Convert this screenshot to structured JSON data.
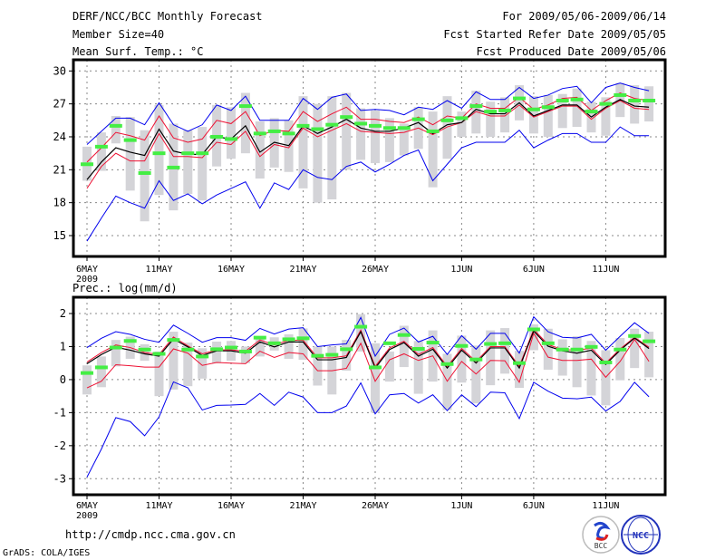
{
  "header": {
    "title": "DERF/NCC/BCC Monthly Forecast",
    "member_size": "Member Size=40",
    "variable1": "Mean Surf. Temp.: °C",
    "period": "For 2009/05/06-2009/06/14",
    "refer_date": "Fcst Started Refer Date 2009/05/05",
    "produced_date": "Fcst Produced Date 2009/05/06"
  },
  "footer": {
    "url": "http://cmdp.ncc.cma.gov.cn",
    "credit": "GrADS: COLA/IGES",
    "logo_bcc": "BCC",
    "logo_ncc": "NCC"
  },
  "colors": {
    "mean": "#000000",
    "spread": "#ee1133",
    "extreme": "#0000ee",
    "obs": "#44ee44",
    "bar": "#d4d4d8",
    "grid": "#888888"
  },
  "chart_data": [
    {
      "type": "line",
      "title": "Mean Surf. Temp.: °C",
      "xlabel": "",
      "ylabel": "",
      "ylim": [
        14,
        31
      ],
      "yticks": [
        "15",
        "18",
        "21",
        "24",
        "27",
        "30"
      ],
      "xticks": [
        {
          "day": 0,
          "label": "6MAY"
        },
        {
          "day": 5,
          "label": "11MAY"
        },
        {
          "day": 10,
          "label": "16MAY"
        },
        {
          "day": 15,
          "label": "21MAY"
        },
        {
          "day": 20,
          "label": "26MAY"
        },
        {
          "day": 26,
          "label": "1JUN"
        },
        {
          "day": 31,
          "label": "6JUN"
        },
        {
          "day": 36,
          "label": "11JUN"
        }
      ],
      "year_label": "2009",
      "grid": true,
      "series": {
        "mean": [
          20.1,
          21.7,
          23.0,
          22.6,
          22.3,
          24.7,
          22.7,
          22.4,
          22.4,
          24.0,
          23.8,
          25.0,
          22.6,
          23.5,
          23.2,
          25.0,
          24.3,
          24.9,
          25.6,
          24.8,
          24.5,
          24.5,
          24.8,
          25.3,
          24.3,
          25.1,
          25.3,
          26.5,
          26.1,
          26.1,
          27.1,
          25.9,
          26.4,
          26.9,
          26.9,
          25.8,
          26.7,
          27.4,
          26.8,
          26.7
        ],
        "spread_hi": [
          21.7,
          23.0,
          24.4,
          24.1,
          23.7,
          25.9,
          23.9,
          23.5,
          23.8,
          25.5,
          25.2,
          26.3,
          24.1,
          24.6,
          24.5,
          26.3,
          25.4,
          26.1,
          26.7,
          25.6,
          25.6,
          25.4,
          25.3,
          25.8,
          25.1,
          25.9,
          25.7,
          27.0,
          26.6,
          26.6,
          27.6,
          26.5,
          26.9,
          27.5,
          27.6,
          26.4,
          27.3,
          28.0,
          27.5,
          27.3
        ],
        "spread_lo": [
          19.3,
          21.3,
          22.5,
          21.8,
          21.8,
          24.3,
          22.2,
          22.2,
          22.1,
          23.5,
          23.3,
          24.5,
          22.2,
          23.3,
          23.0,
          24.8,
          24.0,
          24.6,
          25.2,
          24.5,
          24.4,
          24.3,
          24.4,
          24.8,
          24.2,
          24.9,
          25.3,
          26.3,
          25.9,
          25.9,
          26.9,
          25.8,
          26.3,
          26.8,
          26.8,
          25.6,
          26.6,
          27.3,
          26.6,
          26.5
        ],
        "max": [
          23.3,
          24.5,
          25.7,
          25.7,
          25.1,
          27.1,
          25.1,
          24.5,
          25.1,
          26.9,
          26.4,
          27.7,
          25.5,
          25.5,
          25.5,
          27.5,
          26.5,
          27.6,
          27.9,
          26.4,
          26.5,
          26.4,
          26.0,
          26.7,
          26.5,
          27.3,
          26.6,
          28.1,
          27.4,
          27.4,
          28.5,
          27.5,
          27.8,
          28.4,
          28.6,
          27.1,
          28.5,
          28.9,
          28.5,
          28.2
        ],
        "min": [
          14.5,
          16.6,
          18.6,
          18.0,
          17.5,
          20.0,
          18.2,
          18.8,
          17.9,
          18.7,
          19.3,
          19.9,
          17.5,
          19.8,
          19.2,
          21.0,
          20.3,
          20.1,
          21.3,
          21.7,
          20.8,
          21.5,
          22.3,
          22.8,
          20.0,
          21.5,
          23.0,
          23.5,
          23.5,
          23.5,
          24.6,
          23.0,
          23.7,
          24.3,
          24.3,
          23.5,
          23.5,
          24.9,
          24.1,
          24.1
        ],
        "observed": [
          21.5,
          23.1,
          25.0,
          23.7,
          20.7,
          22.5,
          21.2,
          22.5,
          22.5,
          24.0,
          23.8,
          26.8,
          24.3,
          24.5,
          24.3,
          25.0,
          24.7,
          25.1,
          25.8,
          25.2,
          25.0,
          24.8,
          24.8,
          25.6,
          24.5,
          25.5,
          25.7,
          26.8,
          26.3,
          26.4,
          27.5,
          26.5,
          26.7,
          27.3,
          27.4,
          26.3,
          27.0,
          27.8,
          27.3,
          27.3
        ],
        "bar_lo": [
          20.0,
          20.9,
          23.4,
          19.1,
          16.3,
          18.7,
          17.3,
          18.8,
          18.2,
          21.3,
          22.0,
          22.5,
          20.2,
          21.2,
          20.8,
          19.3,
          18.0,
          18.3,
          21.0,
          21.9,
          21.6,
          21.7,
          22.3,
          22.9,
          19.4,
          22.0,
          24.0,
          24.3,
          24.0,
          24.4,
          25.5,
          24.3,
          24.0,
          24.8,
          24.9,
          24.4,
          24.1,
          25.8,
          25.2,
          25.4
        ],
        "bar_hi": [
          23.1,
          24.4,
          25.9,
          25.8,
          24.6,
          26.9,
          25.2,
          24.6,
          24.9,
          26.9,
          26.7,
          28.0,
          25.4,
          25.7,
          25.5,
          27.7,
          27.0,
          27.7,
          28.0,
          26.6,
          26.4,
          25.7,
          25.2,
          26.7,
          26.3,
          27.7,
          26.3,
          28.2,
          27.2,
          27.6,
          28.7,
          27.7,
          27.8,
          27.9,
          28.4,
          27.2,
          27.6,
          28.9,
          28.7,
          28.6
        ]
      }
    },
    {
      "type": "line",
      "title": "Prec.: log(mm/d)",
      "xlabel": "",
      "ylabel": "",
      "ylim": [
        -3.5,
        2.4
      ],
      "yticks": [
        "-3",
        "-2",
        "-1",
        "0",
        "1",
        "2"
      ],
      "xticks": [
        {
          "day": 0,
          "label": "6MAY"
        },
        {
          "day": 5,
          "label": "11MAY"
        },
        {
          "day": 10,
          "label": "16MAY"
        },
        {
          "day": 15,
          "label": "21MAY"
        },
        {
          "day": 20,
          "label": "26MAY"
        },
        {
          "day": 26,
          "label": "1JUN"
        },
        {
          "day": 31,
          "label": "6JUN"
        },
        {
          "day": 36,
          "label": "11JUN"
        }
      ],
      "year_label": "2009",
      "grid": true,
      "series": {
        "mean": [
          0.48,
          0.76,
          0.98,
          0.89,
          0.78,
          0.71,
          1.23,
          0.99,
          0.73,
          0.87,
          0.87,
          0.8,
          1.14,
          0.99,
          1.14,
          1.14,
          0.6,
          0.6,
          0.67,
          1.45,
          0.35,
          0.91,
          1.12,
          0.71,
          0.92,
          0.35,
          0.89,
          0.5,
          0.96,
          0.96,
          0.35,
          1.47,
          1.01,
          0.87,
          0.8,
          0.89,
          0.46,
          0.89,
          1.26,
          0.94
        ],
        "spread_hi": [
          0.53,
          0.82,
          1.05,
          0.97,
          0.82,
          0.76,
          1.29,
          1.02,
          0.78,
          0.9,
          0.9,
          0.86,
          1.2,
          1.05,
          1.19,
          1.19,
          0.66,
          0.66,
          0.72,
          1.5,
          0.4,
          0.96,
          1.16,
          0.76,
          0.97,
          0.4,
          0.94,
          0.55,
          1.0,
          1.0,
          0.4,
          1.52,
          1.06,
          0.91,
          0.89,
          0.95,
          0.5,
          0.93,
          1.28,
          0.98
        ],
        "spread_lo": [
          -0.25,
          -0.05,
          0.45,
          0.42,
          0.38,
          0.38,
          0.93,
          0.8,
          0.43,
          0.52,
          0.5,
          0.48,
          0.86,
          0.67,
          0.82,
          0.78,
          0.27,
          0.27,
          0.34,
          1.1,
          -0.05,
          0.6,
          0.78,
          0.58,
          0.72,
          -0.05,
          0.55,
          0.17,
          0.58,
          0.57,
          -0.08,
          1.4,
          0.68,
          0.58,
          0.58,
          0.62,
          0.07,
          0.55,
          1.22,
          0.55
        ],
        "max": [
          0.97,
          1.25,
          1.45,
          1.37,
          1.22,
          1.13,
          1.65,
          1.4,
          1.13,
          1.27,
          1.27,
          1.19,
          1.55,
          1.38,
          1.53,
          1.57,
          1.0,
          1.05,
          1.08,
          1.88,
          0.71,
          1.37,
          1.56,
          1.14,
          1.31,
          0.76,
          1.33,
          0.92,
          1.4,
          1.4,
          0.8,
          1.9,
          1.45,
          1.28,
          1.26,
          1.37,
          0.89,
          1.31,
          1.72,
          1.4
        ],
        "min": [
          -2.95,
          -2.1,
          -1.15,
          -1.27,
          -1.7,
          -1.13,
          -0.07,
          -0.25,
          -0.92,
          -0.78,
          -0.77,
          -0.75,
          -0.42,
          -0.78,
          -0.38,
          -0.53,
          -1.0,
          -1.0,
          -0.8,
          -0.1,
          -1.04,
          -0.46,
          -0.42,
          -0.71,
          -0.46,
          -0.94,
          -0.46,
          -0.82,
          -0.38,
          -0.4,
          -1.18,
          -0.08,
          -0.35,
          -0.56,
          -0.58,
          -0.53,
          -0.95,
          -0.66,
          -0.08,
          -0.52
        ],
        "observed": [
          0.2,
          0.37,
          0.97,
          1.17,
          0.91,
          0.78,
          1.2,
          0.91,
          0.7,
          0.92,
          0.97,
          0.85,
          1.27,
          1.1,
          1.22,
          1.25,
          0.72,
          0.75,
          0.92,
          1.6,
          0.37,
          1.1,
          1.35,
          0.93,
          1.12,
          0.47,
          1.02,
          0.61,
          1.08,
          1.1,
          0.5,
          1.52,
          1.1,
          0.91,
          0.91,
          0.99,
          0.52,
          0.91,
          1.32,
          1.16
        ],
        "bar_lo": [
          -0.45,
          -0.23,
          0.4,
          0.63,
          0.57,
          -0.5,
          -0.3,
          -0.2,
          0.03,
          0.5,
          0.57,
          0.5,
          0.7,
          0.88,
          0.63,
          0.6,
          -0.18,
          -0.45,
          0.27,
          0.85,
          -1.0,
          -0.06,
          0.38,
          -0.43,
          -0.06,
          -0.92,
          -0.09,
          -0.72,
          -0.17,
          0.18,
          -0.25,
          0.89,
          0.3,
          0.12,
          -0.23,
          -0.48,
          -0.78,
          -0.02,
          0.35,
          0.07
        ],
        "bar_hi": [
          0.43,
          0.7,
          1.2,
          1.3,
          1.07,
          0.85,
          1.45,
          1.12,
          0.95,
          1.15,
          1.17,
          1.0,
          1.3,
          1.28,
          1.37,
          1.55,
          1.0,
          1.0,
          1.2,
          1.98,
          1.1,
          0.85,
          1.63,
          1.17,
          1.49,
          0.78,
          1.33,
          1.03,
          1.49,
          1.56,
          0.87,
          1.67,
          1.54,
          1.22,
          1.31,
          1.17,
          0.89,
          1.26,
          1.54,
          1.45
        ]
      }
    }
  ]
}
